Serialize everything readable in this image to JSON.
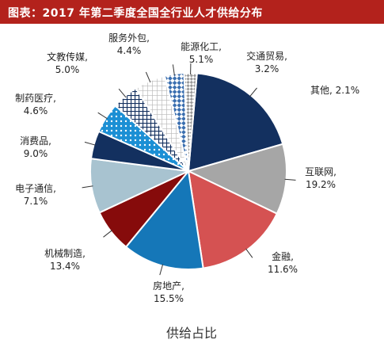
{
  "title": "图表：2017 年第二季度全国全行业人才供给分布",
  "chart_data": {
    "type": "pie",
    "title": "图表：2017 年第二季度全国全行业人才供给分布",
    "xlabel": "供给占比",
    "slices": [
      {
        "label": "互联网",
        "value": 19.2,
        "value_text": "19.2%",
        "color": "#13305f",
        "pattern": "solid"
      },
      {
        "label": "金融",
        "value": 11.6,
        "value_text": "11.6%",
        "color": "#a6a6a6",
        "pattern": "solid"
      },
      {
        "label": "房地产",
        "value": 15.5,
        "value_text": "15.5%",
        "color": "#d55252",
        "pattern": "solid"
      },
      {
        "label": "机械制造",
        "value": 13.4,
        "value_text": "13.4%",
        "color": "#1577b8",
        "pattern": "solid"
      },
      {
        "label": "电子通信",
        "value": 7.1,
        "value_text": "7.1%",
        "color": "#860b0b",
        "pattern": "solid"
      },
      {
        "label": "消费品",
        "value": 9.0,
        "value_text": "9.0%",
        "color": "#a8c3d0",
        "pattern": "solid"
      },
      {
        "label": "制药医疗",
        "value": 4.6,
        "value_text": "4.6%",
        "color": "#13305f",
        "pattern": "solid"
      },
      {
        "label": "文教传媒",
        "value": 5.0,
        "value_text": "5.0%",
        "color": "#1b8fd4",
        "pattern": "dots"
      },
      {
        "label": "服务外包",
        "value": 4.4,
        "value_text": "4.4%",
        "color": "#13305f",
        "pattern": "grid"
      },
      {
        "label": "能源化工",
        "value": 5.1,
        "value_text": "5.1%",
        "color": "#a6a6a6",
        "pattern": "grid"
      },
      {
        "label": "交通贸易",
        "value": 3.2,
        "value_text": "3.2%",
        "color": "#3b6fb0",
        "pattern": "checker"
      },
      {
        "label": "其他",
        "value": 2.1,
        "value_text": "2.1%",
        "color": "#9a9a9a",
        "pattern": "checker"
      }
    ]
  }
}
